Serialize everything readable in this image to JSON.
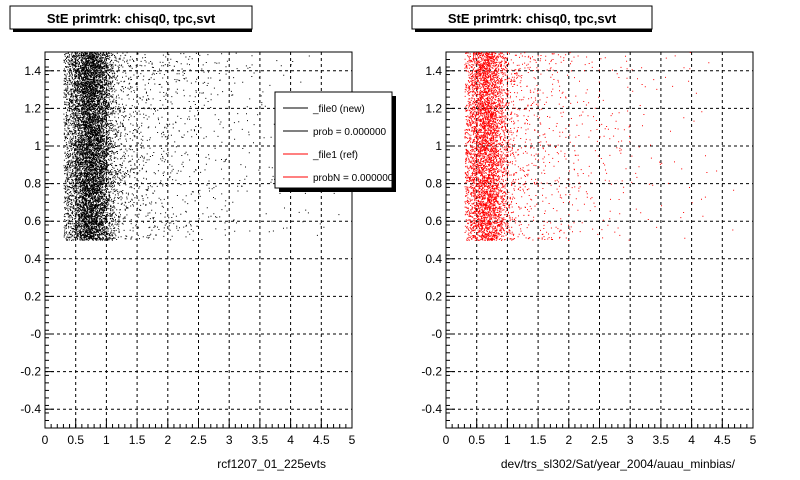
{
  "colors": {
    "new_series": "#000000",
    "ref_series": "#ff0000",
    "grid": "#000000",
    "frame": "#000000",
    "background": "#ffffff"
  },
  "chart_data": [
    {
      "type": "scatter",
      "title": "StE primtrk: chisq0, tpc,svt",
      "caption": "rcf1207_01_225evts",
      "xlim": [
        0,
        5
      ],
      "ylim": [
        -0.5,
        1.5
      ],
      "x_ticks": [
        "0",
        "0.5",
        "1",
        "1.5",
        "2",
        "2.5",
        "3",
        "3.5",
        "4",
        "4.5",
        "5"
      ],
      "y_ticks": [
        "-0.4",
        "-0.2",
        "-0",
        "0.2",
        "0.4",
        "0.6",
        "0.8",
        "1",
        "1.2",
        "1.4"
      ],
      "grid": true,
      "legend_position": "top-right",
      "legend": [
        {
          "label": "_file0 (new)",
          "color": "#000000"
        },
        {
          "label": "prob = 0.000000",
          "color": "#000000"
        },
        {
          "label": "_file1 (ref)",
          "color": "#ff0000"
        },
        {
          "label": "probN = 0.000000",
          "color": "#ff0000"
        }
      ],
      "series": [
        {
          "color": "#000000",
          "y_range": [
            0.5,
            1.5
          ],
          "x_range": [
            0.3,
            5
          ],
          "x_peak": 0.75,
          "points_drawn": 9000,
          "density": [
            {
              "x": 0.5,
              "level": "very dense"
            },
            {
              "x": 0.75,
              "level": "densest"
            },
            {
              "x": 1.5,
              "level": "medium"
            },
            {
              "x": 3,
              "level": "sparse"
            },
            {
              "x": 5,
              "level": "very sparse"
            }
          ]
        }
      ]
    },
    {
      "type": "scatter",
      "title": "StE primtrk: chisq0, tpc,svt",
      "caption": "dev/trs_sl302/Sat/year_2004/auau_minbias/",
      "xlim": [
        0,
        5
      ],
      "ylim": [
        -0.5,
        1.5
      ],
      "x_ticks": [
        "0",
        "0.5",
        "1",
        "1.5",
        "2",
        "2.5",
        "3",
        "3.5",
        "4",
        "4.5",
        "5"
      ],
      "y_ticks": [
        "-0.4",
        "-0.2",
        "-0",
        "0.2",
        "0.4",
        "0.6",
        "0.8",
        "1",
        "1.2",
        "1.4"
      ],
      "grid": true,
      "series": [
        {
          "color": "#ff0000",
          "y_range": [
            0.5,
            1.5
          ],
          "x_range": [
            0.3,
            5
          ],
          "x_peak": 0.65,
          "points_drawn": 5500,
          "density": [
            {
              "x": 0.5,
              "level": "dense"
            },
            {
              "x": 0.65,
              "level": "densest"
            },
            {
              "x": 1.5,
              "level": "medium"
            },
            {
              "x": 3,
              "level": "sparse"
            },
            {
              "x": 5,
              "level": "very sparse"
            }
          ]
        }
      ]
    }
  ]
}
